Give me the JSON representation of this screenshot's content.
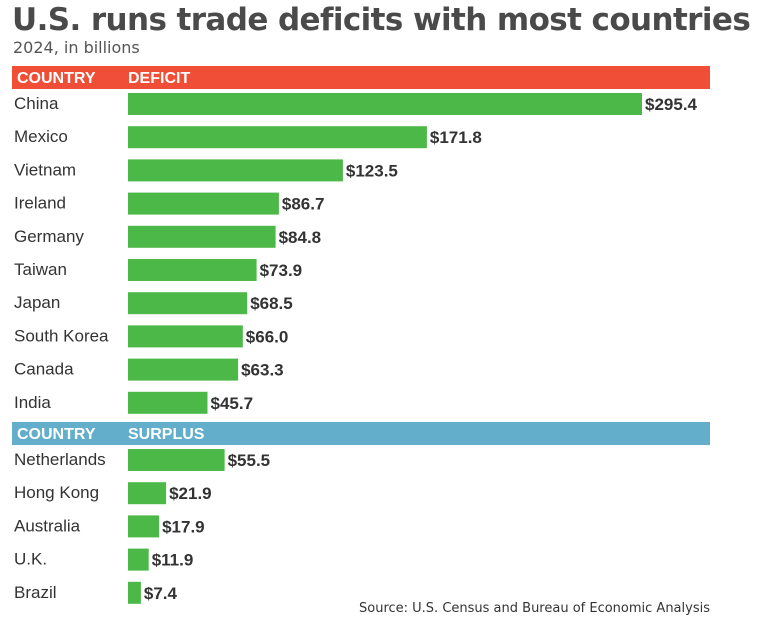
{
  "title": "U.S. runs trade deficits with most countries",
  "subtitle": "2024, in billions",
  "source": "Source: U.S. Census and Bureau of Economic Analysis",
  "colors": {
    "bar": "#4cb848",
    "deficit_header": "#f04e37",
    "surplus_header": "#62aecb",
    "header_text": "#ffffff",
    "label_text": "#333333"
  },
  "chart_data": [
    {
      "type": "bar",
      "orientation": "horizontal",
      "header": {
        "column": "COUNTRY",
        "value": "DEFICIT"
      },
      "categories": [
        "China",
        "Mexico",
        "Vietnam",
        "Ireland",
        "Germany",
        "Taiwan",
        "Japan",
        "South Korea",
        "Canada",
        "India"
      ],
      "values": [
        295.4,
        171.8,
        123.5,
        86.7,
        84.8,
        73.9,
        68.5,
        66.0,
        63.3,
        45.7
      ],
      "labels": [
        "$295.4",
        "$171.8",
        "$123.5",
        "$86.7",
        "$84.8",
        "$73.9",
        "$68.5",
        "$66.0",
        "$63.3",
        "$45.7"
      ],
      "xlim": [
        0,
        295.4
      ]
    },
    {
      "type": "bar",
      "orientation": "horizontal",
      "header": {
        "column": "COUNTRY",
        "value": "SURPLUS"
      },
      "categories": [
        "Netherlands",
        "Hong Kong",
        "Australia",
        "U.K.",
        "Brazil"
      ],
      "values": [
        55.5,
        21.9,
        17.9,
        11.9,
        7.4
      ],
      "labels": [
        "$55.5",
        "$21.9",
        "$17.9",
        "$11.9",
        "$7.4"
      ],
      "xlim": [
        0,
        295.4
      ]
    }
  ]
}
